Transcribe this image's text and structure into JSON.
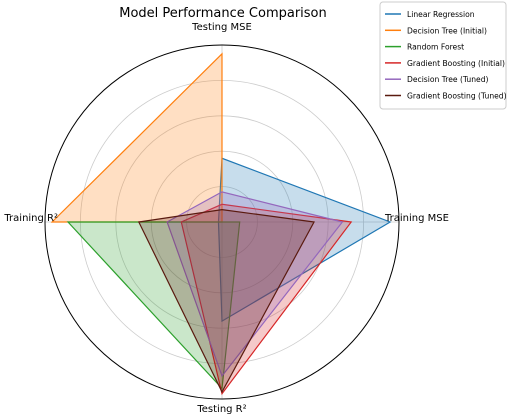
{
  "chart_data": {
    "type": "radar",
    "title": "Model Performance Comparison",
    "axes": [
      "Training MSE",
      "Testing MSE",
      "Training R²",
      "Testing R²"
    ],
    "rlim": [
      0,
      1
    ],
    "grid": true,
    "legend_position": "top-right",
    "series": [
      {
        "name": "Linear Regression",
        "color": "#1f77b4",
        "values": [
          0.95,
          0.36,
          0.02,
          0.56
        ]
      },
      {
        "name": "Decision Tree (Initial)",
        "color": "#ff7f0e",
        "values": [
          0.0,
          0.95,
          0.96,
          0.0
        ]
      },
      {
        "name": "Random Forest",
        "color": "#2ca02c",
        "values": [
          0.1,
          0.0,
          0.87,
          0.94
        ]
      },
      {
        "name": "Gradient Boosting (Initial)",
        "color": "#d62728",
        "values": [
          0.73,
          0.1,
          0.23,
          0.97
        ]
      },
      {
        "name": "Decision Tree (Tuned)",
        "color": "#9467bd",
        "values": [
          0.68,
          0.17,
          0.31,
          0.87
        ]
      },
      {
        "name": "Gradient Boosting (Tuned)",
        "color": "#5a1a0f",
        "values": [
          0.52,
          0.07,
          0.47,
          0.96
        ]
      }
    ]
  }
}
